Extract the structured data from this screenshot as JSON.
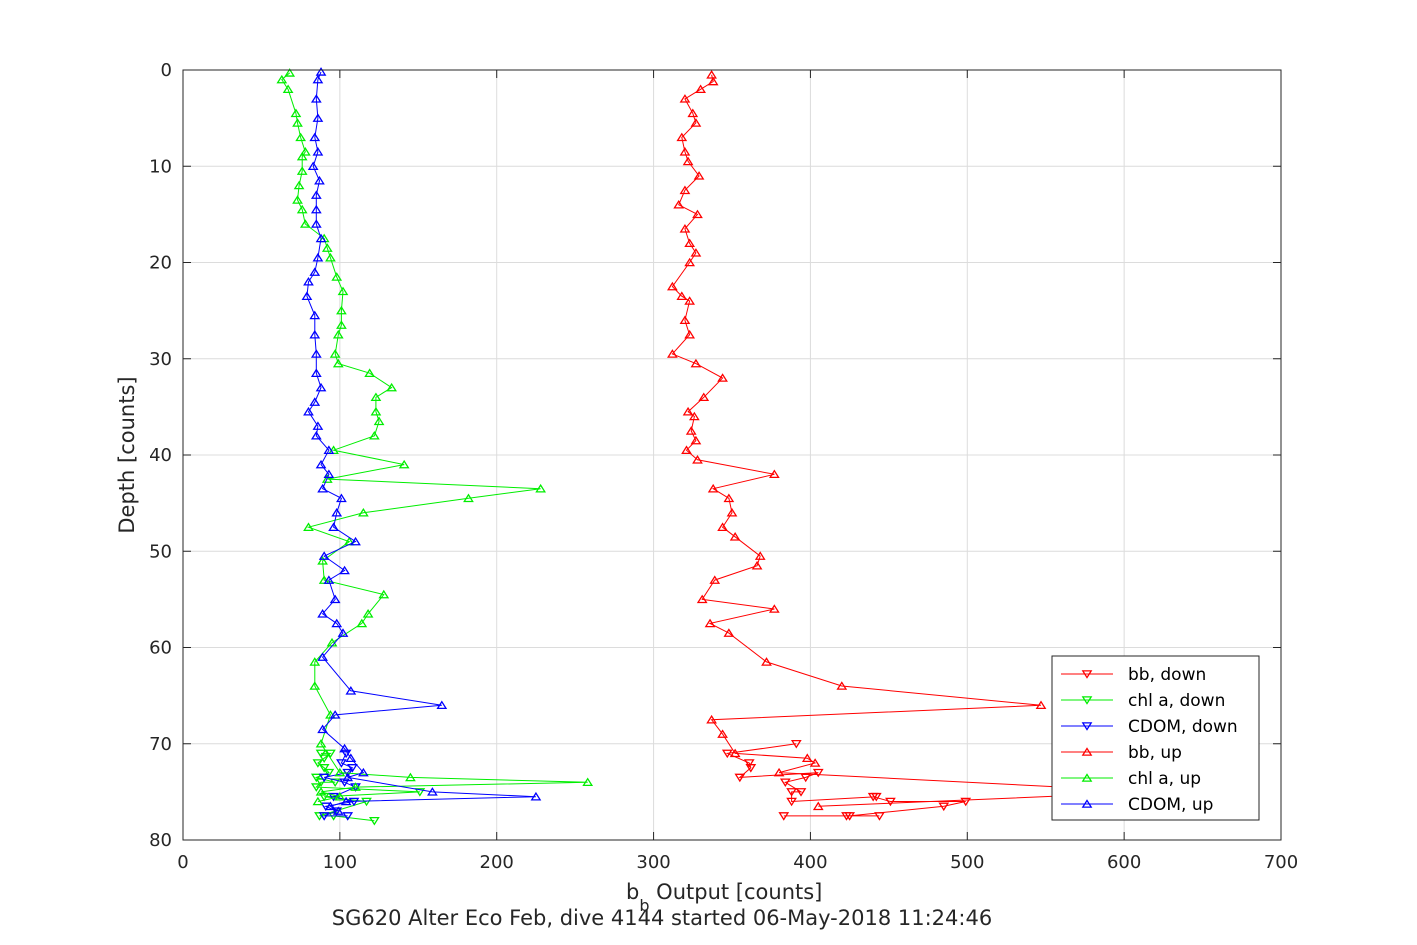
{
  "chart_data": {
    "type": "line",
    "title": "",
    "subtitle": "SG620 Alter Eco Feb, dive 4144 started 06-May-2018 11:24:46",
    "xlabel_main": "b",
    "xlabel_sub": "b",
    "xlabel_rest": " Output [counts]",
    "ylabel": "Depth [counts]",
    "xlim": [
      0,
      700
    ],
    "ylim": [
      0,
      80
    ],
    "y_reversed": true,
    "grid": true,
    "legend_position": "bottom-right",
    "xticks": [
      0,
      100,
      200,
      300,
      400,
      500,
      600,
      700
    ],
    "yticks": [
      0,
      10,
      20,
      30,
      40,
      50,
      60,
      70,
      80
    ],
    "series": [
      {
        "name": "bb, down",
        "color": "#ff0000",
        "marker": "down",
        "points": [
          [
            383,
            77.5
          ],
          [
            423,
            77.5
          ],
          [
            444,
            77.5
          ],
          [
            425,
            77.5
          ],
          [
            485,
            76.5
          ],
          [
            499,
            76
          ],
          [
            451,
            76
          ],
          [
            440,
            75.5
          ],
          [
            442,
            75.5
          ],
          [
            388,
            76
          ],
          [
            388,
            75
          ],
          [
            394,
            75
          ],
          [
            384,
            74
          ],
          [
            397,
            73.5
          ],
          [
            405,
            73
          ],
          [
            355,
            73.5
          ],
          [
            362,
            72.5
          ],
          [
            361,
            72
          ],
          [
            347,
            71
          ],
          [
            391,
            70
          ]
        ]
      },
      {
        "name": "chl a, down",
        "color": "#00ee00",
        "marker": "down",
        "points": [
          [
            122,
            78
          ],
          [
            96,
            77.5
          ],
          [
            87,
            77.5
          ],
          [
            117,
            76
          ],
          [
            90,
            75.5
          ],
          [
            151,
            75
          ],
          [
            85,
            74.5
          ],
          [
            88,
            74
          ],
          [
            97,
            74
          ],
          [
            85,
            73.5
          ],
          [
            93,
            73
          ],
          [
            90,
            72.5
          ],
          [
            86,
            72
          ],
          [
            90,
            71.5
          ],
          [
            94,
            71
          ],
          [
            88,
            71
          ]
        ]
      },
      {
        "name": "CDOM, down",
        "color": "#0000ff",
        "marker": "down",
        "points": [
          [
            105,
            77.5
          ],
          [
            90,
            77.5
          ],
          [
            98,
            77
          ],
          [
            91,
            76.5
          ],
          [
            109,
            76
          ],
          [
            96,
            75.5
          ],
          [
            110,
            74.5
          ],
          [
            103,
            74
          ],
          [
            90,
            73.5
          ],
          [
            105,
            73
          ],
          [
            108,
            72.5
          ],
          [
            101,
            72
          ],
          [
            104,
            71
          ]
        ]
      },
      {
        "name": "bb, up",
        "color": "#ff0000",
        "marker": "up",
        "points": [
          [
            337,
            0.5
          ],
          [
            338,
            1.2
          ],
          [
            330,
            2
          ],
          [
            320,
            3
          ],
          [
            325,
            4.5
          ],
          [
            327,
            5.5
          ],
          [
            318,
            7
          ],
          [
            320,
            8.5
          ],
          [
            322,
            9.5
          ],
          [
            329,
            11
          ],
          [
            320,
            12.5
          ],
          [
            316,
            14
          ],
          [
            328,
            15
          ],
          [
            320,
            16.5
          ],
          [
            323,
            18
          ],
          [
            327,
            19
          ],
          [
            323,
            20
          ],
          [
            312,
            22.5
          ],
          [
            318,
            23.5
          ],
          [
            323,
            24
          ],
          [
            320,
            26
          ],
          [
            323,
            27.5
          ],
          [
            312,
            29.5
          ],
          [
            327,
            30.5
          ],
          [
            344,
            32
          ],
          [
            332,
            34
          ],
          [
            322,
            35.5
          ],
          [
            326,
            36
          ],
          [
            324,
            37.5
          ],
          [
            327,
            38.5
          ],
          [
            321,
            39.5
          ],
          [
            328,
            40.5
          ],
          [
            377,
            42
          ],
          [
            338,
            43.5
          ],
          [
            348,
            44.5
          ],
          [
            350,
            46
          ],
          [
            344,
            47.5
          ],
          [
            352,
            48.5
          ],
          [
            368,
            50.5
          ],
          [
            366,
            51.5
          ],
          [
            339,
            53
          ],
          [
            331,
            55
          ],
          [
            377,
            56
          ],
          [
            336,
            57.5
          ],
          [
            348,
            58.5
          ],
          [
            372,
            61.5
          ],
          [
            420,
            64
          ],
          [
            547,
            66
          ],
          [
            337,
            67.5
          ],
          [
            344,
            69
          ],
          [
            352,
            71
          ],
          [
            398,
            71.5
          ],
          [
            403,
            72
          ],
          [
            380,
            73
          ],
          [
            620,
            75
          ],
          [
            405,
            76.5
          ]
        ]
      },
      {
        "name": "chl a, up",
        "color": "#00ee00",
        "marker": "up",
        "points": [
          [
            68,
            0.3
          ],
          [
            63,
            1
          ],
          [
            67,
            2
          ],
          [
            72,
            4.5
          ],
          [
            73,
            5.5
          ],
          [
            75,
            7
          ],
          [
            78,
            8.5
          ],
          [
            76,
            9
          ],
          [
            76,
            10.5
          ],
          [
            74,
            12
          ],
          [
            73,
            13.5
          ],
          [
            76,
            14.5
          ],
          [
            78,
            16
          ],
          [
            90,
            17.5
          ],
          [
            92,
            18.5
          ],
          [
            94,
            19.5
          ],
          [
            98,
            21.5
          ],
          [
            102,
            23
          ],
          [
            101,
            25
          ],
          [
            101,
            26.5
          ],
          [
            99,
            27.5
          ],
          [
            97,
            29.5
          ],
          [
            99,
            30.5
          ],
          [
            119,
            31.5
          ],
          [
            133,
            33
          ],
          [
            123,
            34
          ],
          [
            123,
            35.5
          ],
          [
            125,
            36.5
          ],
          [
            122,
            38
          ],
          [
            96,
            39.5
          ],
          [
            141,
            41
          ],
          [
            92,
            42.5
          ],
          [
            228,
            43.5
          ],
          [
            182,
            44.5
          ],
          [
            115,
            46
          ],
          [
            80,
            47.5
          ],
          [
            106,
            49
          ],
          [
            89,
            51
          ],
          [
            90,
            53
          ],
          [
            128,
            54.5
          ],
          [
            118,
            56.5
          ],
          [
            114,
            57.5
          ],
          [
            95,
            59.5
          ],
          [
            84,
            61.5
          ],
          [
            84,
            64
          ],
          [
            94,
            67
          ],
          [
            88,
            70
          ],
          [
            100,
            73
          ],
          [
            145,
            73.5
          ],
          [
            258,
            74
          ],
          [
            110,
            74.5
          ],
          [
            88,
            75
          ],
          [
            100,
            75.5
          ],
          [
            86,
            76
          ]
        ]
      },
      {
        "name": "CDOM, up",
        "color": "#0000ff",
        "marker": "up",
        "points": [
          [
            88,
            0.2
          ],
          [
            86,
            1
          ],
          [
            85,
            3
          ],
          [
            86,
            5
          ],
          [
            84,
            7
          ],
          [
            86,
            8.5
          ],
          [
            83,
            10
          ],
          [
            87,
            11.5
          ],
          [
            85,
            13
          ],
          [
            85,
            14.5
          ],
          [
            85,
            16
          ],
          [
            88,
            17.5
          ],
          [
            86,
            19.5
          ],
          [
            84,
            21
          ],
          [
            80,
            22
          ],
          [
            79,
            23.5
          ],
          [
            84,
            25.5
          ],
          [
            84,
            27.5
          ],
          [
            85,
            29.5
          ],
          [
            85,
            31.5
          ],
          [
            88,
            33
          ],
          [
            84,
            34.5
          ],
          [
            80,
            35.5
          ],
          [
            86,
            37
          ],
          [
            85,
            38
          ],
          [
            93,
            39.5
          ],
          [
            88,
            41
          ],
          [
            93,
            42
          ],
          [
            89,
            43.5
          ],
          [
            101,
            44.5
          ],
          [
            98,
            46
          ],
          [
            96,
            47.5
          ],
          [
            110,
            49
          ],
          [
            90,
            50.5
          ],
          [
            103,
            52
          ],
          [
            93,
            53
          ],
          [
            97,
            55
          ],
          [
            89,
            56.5
          ],
          [
            98,
            57.5
          ],
          [
            102,
            58.5
          ],
          [
            89,
            61
          ],
          [
            107,
            64.5
          ],
          [
            165,
            66
          ],
          [
            97,
            67
          ],
          [
            89,
            68.5
          ],
          [
            103,
            70.5
          ],
          [
            107,
            71.5
          ],
          [
            115,
            73
          ],
          [
            105,
            73.5
          ],
          [
            159,
            75
          ],
          [
            225,
            75.5
          ],
          [
            104,
            76
          ],
          [
            94,
            76.5
          ],
          [
            99,
            77
          ]
        ]
      }
    ]
  }
}
